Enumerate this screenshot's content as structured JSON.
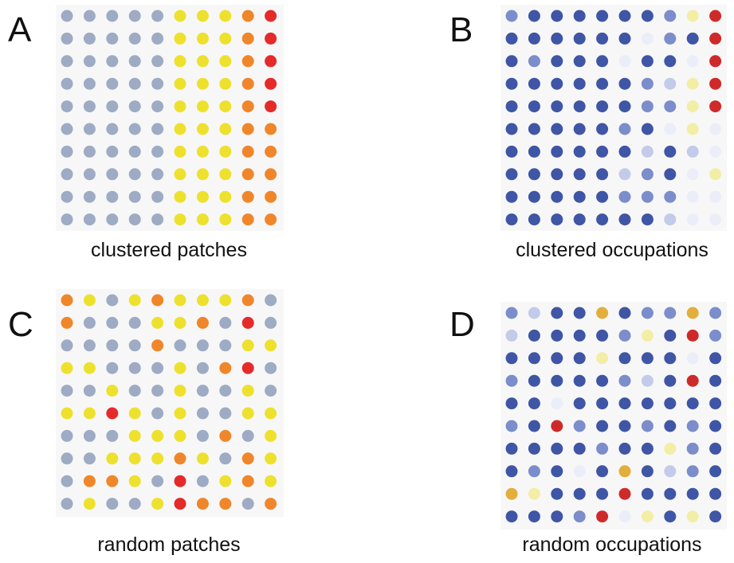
{
  "panels": [
    {
      "label": "A",
      "caption": "clustered patches",
      "rows": [
        [
          "#9eabc4",
          "#9eabc4",
          "#9eabc4",
          "#9eabc4",
          "#9eabc4",
          "#ede12e",
          "#ede12e",
          "#ede12e",
          "#f0862a",
          "#e52a2a"
        ],
        [
          "#9eabc4",
          "#9eabc4",
          "#9eabc4",
          "#9eabc4",
          "#9eabc4",
          "#ede12e",
          "#ede12e",
          "#ede12e",
          "#f0862a",
          "#e52a2a"
        ],
        [
          "#9eabc4",
          "#9eabc4",
          "#9eabc4",
          "#9eabc4",
          "#9eabc4",
          "#ede12e",
          "#ede12e",
          "#ede12e",
          "#f0862a",
          "#e52a2a"
        ],
        [
          "#9eabc4",
          "#9eabc4",
          "#9eabc4",
          "#9eabc4",
          "#9eabc4",
          "#ede12e",
          "#ede12e",
          "#ede12e",
          "#f0862a",
          "#e52a2a"
        ],
        [
          "#9eabc4",
          "#9eabc4",
          "#9eabc4",
          "#9eabc4",
          "#9eabc4",
          "#ede12e",
          "#ede12e",
          "#ede12e",
          "#f0862a",
          "#e52a2a"
        ],
        [
          "#9eabc4",
          "#9eabc4",
          "#9eabc4",
          "#9eabc4",
          "#9eabc4",
          "#ede12e",
          "#ede12e",
          "#ede12e",
          "#f0862a",
          "#f0862a"
        ],
        [
          "#9eabc4",
          "#9eabc4",
          "#9eabc4",
          "#9eabc4",
          "#9eabc4",
          "#ede12e",
          "#ede12e",
          "#ede12e",
          "#f0862a",
          "#f0862a"
        ],
        [
          "#9eabc4",
          "#9eabc4",
          "#9eabc4",
          "#9eabc4",
          "#9eabc4",
          "#ede12e",
          "#ede12e",
          "#ede12e",
          "#f0862a",
          "#f0862a"
        ],
        [
          "#9eabc4",
          "#9eabc4",
          "#9eabc4",
          "#9eabc4",
          "#9eabc4",
          "#ede12e",
          "#ede12e",
          "#ede12e",
          "#f0862a",
          "#f0862a"
        ],
        [
          "#9eabc4",
          "#9eabc4",
          "#9eabc4",
          "#9eabc4",
          "#9eabc4",
          "#ede12e",
          "#ede12e",
          "#ede12e",
          "#f0862a",
          "#f0862a"
        ]
      ]
    },
    {
      "label": "B",
      "caption": "clustered occupations",
      "rows": [
        [
          "#7b8dca",
          "#3f55a5",
          "#3f55a5",
          "#3f55a5",
          "#3f55a5",
          "#3f55a5",
          "#3f55a5",
          "#7b8dca",
          "#f3eea6",
          "#cf2a2a"
        ],
        [
          "#3f55a5",
          "#3f55a5",
          "#3f55a5",
          "#3f55a5",
          "#3f55a5",
          "#3f55a5",
          "#ebeef8",
          "#7b8dca",
          "#3f55a5",
          "#cf2a2a"
        ],
        [
          "#3f55a5",
          "#7b8dca",
          "#3f55a5",
          "#3f55a5",
          "#3f55a5",
          "#ebeef8",
          "#3f55a5",
          "#3f55a5",
          "#ebeef8",
          "#cf2a2a"
        ],
        [
          "#3f55a5",
          "#3f55a5",
          "#3f55a5",
          "#3f55a5",
          "#3f55a5",
          "#3f55a5",
          "#7b8dca",
          "#c3cbea",
          "#f3eea6",
          "#cf2a2a"
        ],
        [
          "#3f55a5",
          "#3f55a5",
          "#3f55a5",
          "#3f55a5",
          "#3f55a5",
          "#3f55a5",
          "#7b8dca",
          "#7b8dca",
          "#f3eea6",
          "#cf2a2a"
        ],
        [
          "#3f55a5",
          "#3f55a5",
          "#3f55a5",
          "#3f55a5",
          "#3f55a5",
          "#7b8dca",
          "#3f55a5",
          "#ebeef8",
          "#f3eea6",
          "#ebeef8"
        ],
        [
          "#3f55a5",
          "#3f55a5",
          "#3f55a5",
          "#3f55a5",
          "#3f55a5",
          "#3f55a5",
          "#c3cbea",
          "#3f55a5",
          "#c3cbea",
          "#ebeef8"
        ],
        [
          "#3f55a5",
          "#3f55a5",
          "#3f55a5",
          "#3f55a5",
          "#3f55a5",
          "#c3cbea",
          "#7b8dca",
          "#3f55a5",
          "#ebeef8",
          "#f3eea6"
        ],
        [
          "#3f55a5",
          "#3f55a5",
          "#3f55a5",
          "#3f55a5",
          "#3f55a5",
          "#7b8dca",
          "#7b8dca",
          "#7b8dca",
          "#ebeef8",
          "#ebeef8"
        ],
        [
          "#3f55a5",
          "#3f55a5",
          "#3f55a5",
          "#3f55a5",
          "#3f55a5",
          "#3f55a5",
          "#3f55a5",
          "#c3cbea",
          "#ebeef8",
          "#ebeef8"
        ]
      ]
    },
    {
      "label": "C",
      "caption": "random patches",
      "rows": [
        [
          "#f0862a",
          "#ede12e",
          "#9eabc4",
          "#ede12e",
          "#f0862a",
          "#ede12e",
          "#ede12e",
          "#ede12e",
          "#f0862a",
          "#9eabc4"
        ],
        [
          "#f0862a",
          "#9eabc4",
          "#9eabc4",
          "#9eabc4",
          "#ede12e",
          "#ede12e",
          "#f0862a",
          "#9eabc4",
          "#e52a2a",
          "#9eabc4"
        ],
        [
          "#9eabc4",
          "#9eabc4",
          "#9eabc4",
          "#9eabc4",
          "#f0862a",
          "#9eabc4",
          "#9eabc4",
          "#9eabc4",
          "#ede12e",
          "#ede12e"
        ],
        [
          "#ede12e",
          "#ede12e",
          "#9eabc4",
          "#9eabc4",
          "#9eabc4",
          "#ede12e",
          "#9eabc4",
          "#f0862a",
          "#e52a2a",
          "#9eabc4"
        ],
        [
          "#9eabc4",
          "#9eabc4",
          "#ede12e",
          "#9eabc4",
          "#9eabc4",
          "#ede12e",
          "#9eabc4",
          "#9eabc4",
          "#ede12e",
          "#9eabc4"
        ],
        [
          "#ede12e",
          "#ede12e",
          "#e52a2a",
          "#ede12e",
          "#9eabc4",
          "#ede12e",
          "#9eabc4",
          "#9eabc4",
          "#ede12e",
          "#ede12e"
        ],
        [
          "#9eabc4",
          "#9eabc4",
          "#9eabc4",
          "#ede12e",
          "#ede12e",
          "#ede12e",
          "#9eabc4",
          "#f0862a",
          "#9eabc4",
          "#ede12e"
        ],
        [
          "#9eabc4",
          "#9eabc4",
          "#ede12e",
          "#ede12e",
          "#ede12e",
          "#f0862a",
          "#ede12e",
          "#9eabc4",
          "#f0862a",
          "#ede12e"
        ],
        [
          "#9eabc4",
          "#f0862a",
          "#f0862a",
          "#ede12e",
          "#9eabc4",
          "#e52a2a",
          "#9eabc4",
          "#ede12e",
          "#f0862a",
          "#ede12e"
        ],
        [
          "#9eabc4",
          "#ede12e",
          "#9eabc4",
          "#9eabc4",
          "#ede12e",
          "#e52a2a",
          "#f0862a",
          "#f0862a",
          "#9eabc4",
          "#f0862a"
        ]
      ]
    },
    {
      "label": "D",
      "caption": "random occupations",
      "rows": [
        [
          "#7b8dca",
          "#c3cbea",
          "#3f55a5",
          "#3f55a5",
          "#e2ae3c",
          "#3f55a5",
          "#7b8dca",
          "#7b8dca",
          "#e2ae3c",
          "#7b8dca"
        ],
        [
          "#c3cbea",
          "#3f55a5",
          "#3f55a5",
          "#3f55a5",
          "#3f55a5",
          "#7b8dca",
          "#f3eea6",
          "#3f55a5",
          "#cf2a2a",
          "#7b8dca"
        ],
        [
          "#3f55a5",
          "#3f55a5",
          "#3f55a5",
          "#3f55a5",
          "#f3eea6",
          "#3f55a5",
          "#3f55a5",
          "#3f55a5",
          "#ebeef8",
          "#3f55a5"
        ],
        [
          "#7b8dca",
          "#3f55a5",
          "#3f55a5",
          "#3f55a5",
          "#3f55a5",
          "#7b8dca",
          "#c3cbea",
          "#3f55a5",
          "#cf2a2a",
          "#3f55a5"
        ],
        [
          "#3f55a5",
          "#3f55a5",
          "#ebeef8",
          "#3f55a5",
          "#3f55a5",
          "#3f55a5",
          "#3f55a5",
          "#3f55a5",
          "#3f55a5",
          "#3f55a5"
        ],
        [
          "#7b8dca",
          "#3f55a5",
          "#cf2a2a",
          "#7b8dca",
          "#3f55a5",
          "#3f55a5",
          "#7b8dca",
          "#3f55a5",
          "#7b8dca",
          "#3f55a5"
        ],
        [
          "#3f55a5",
          "#3f55a5",
          "#3f55a5",
          "#3f55a5",
          "#7b8dca",
          "#3f55a5",
          "#3f55a5",
          "#f3eea6",
          "#7b8dca",
          "#3f55a5"
        ],
        [
          "#3f55a5",
          "#7b8dca",
          "#3f55a5",
          "#ebeef8",
          "#3f55a5",
          "#e2ae3c",
          "#3f55a5",
          "#c3cbea",
          "#7b8dca",
          "#3f55a5"
        ],
        [
          "#e2ae3c",
          "#f3eea6",
          "#3f55a5",
          "#3f55a5",
          "#3f55a5",
          "#cf2a2a",
          "#3f55a5",
          "#3f55a5",
          "#3f55a5",
          "#3f55a5"
        ],
        [
          "#3f55a5",
          "#3f55a5",
          "#3f55a5",
          "#7b8dca",
          "#cf2a2a",
          "#ebeef8",
          "#f3eea6",
          "#3f55a5",
          "#f3eea6",
          "#3f55a5"
        ]
      ]
    }
  ]
}
